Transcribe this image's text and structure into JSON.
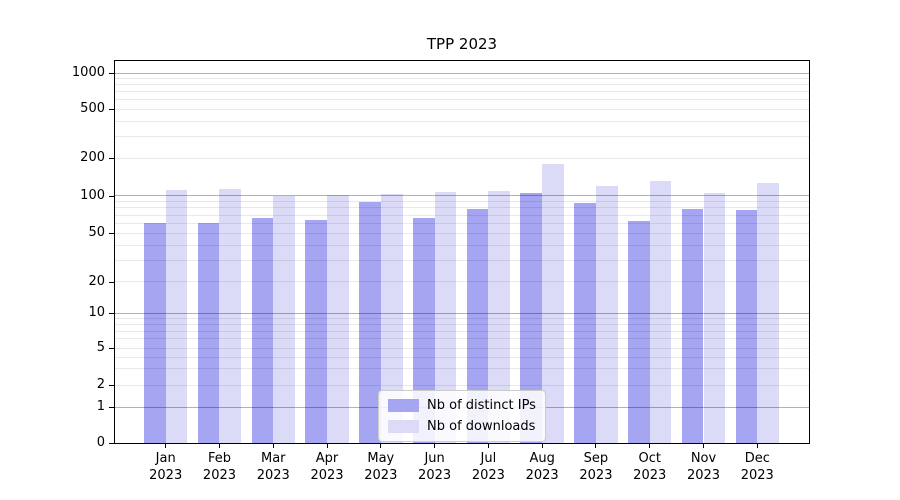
{
  "chart_data": {
    "type": "bar",
    "title": "TPP 2023",
    "categories": [
      "Jan 2023",
      "Feb 2023",
      "Mar 2023",
      "Apr 2023",
      "May 2023",
      "Jun 2023",
      "Jul 2023",
      "Aug 2023",
      "Sep 2023",
      "Oct 2023",
      "Nov 2023",
      "Dec 2023"
    ],
    "month_labels": [
      "Jan",
      "Feb",
      "Mar",
      "Apr",
      "May",
      "Jun",
      "Jul",
      "Aug",
      "Sep",
      "Oct",
      "Nov",
      "Dec"
    ],
    "year_label": "2023",
    "series": [
      {
        "name": "Nb of distinct IPs",
        "color": "#a5a5f2",
        "values": [
          60,
          61,
          66,
          64,
          89,
          66,
          79,
          105,
          88,
          63,
          78,
          77
        ]
      },
      {
        "name": "Nb of downloads",
        "color": "#dbdbf8",
        "values": [
          112,
          113,
          100,
          102,
          103,
          108,
          109,
          180,
          119,
          132,
          105,
          126
        ]
      }
    ],
    "yscale": "symlog",
    "y_ticks": [
      1000,
      500,
      200,
      100,
      50,
      20,
      10,
      5,
      2,
      1,
      0
    ],
    "ylim": [
      0,
      1400
    ],
    "grid": "on",
    "major_grid_values": [
      1,
      10,
      100,
      1000
    ],
    "legend_position": "lower-center-inside",
    "colors": {
      "axis": "#000000",
      "major_grid": "#b0b0b0",
      "minor_grid": "#e9e9e9",
      "background": "#ffffff"
    }
  },
  "legend": {
    "items": [
      {
        "label": "Nb of distinct IPs",
        "color": "#a5a5f2"
      },
      {
        "label": "Nb of downloads",
        "color": "#dbdbf8"
      }
    ]
  }
}
